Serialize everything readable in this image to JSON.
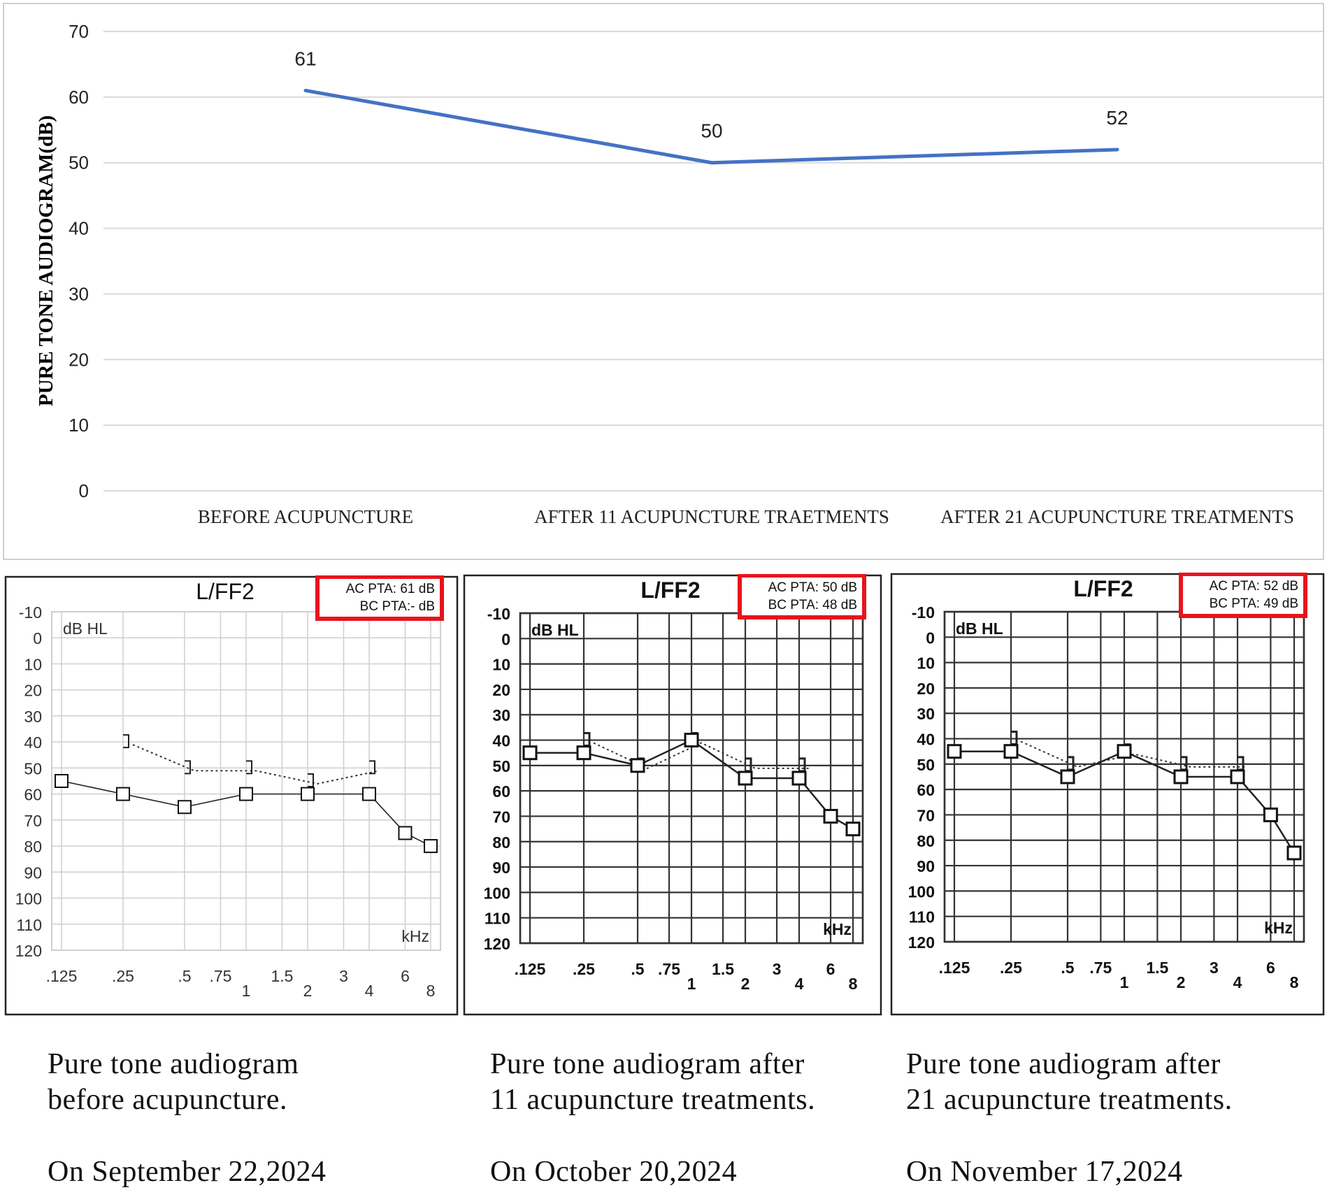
{
  "chart_data": [
    {
      "type": "line",
      "xlabel": "",
      "ylabel": "PURE TONE AUDIOGRAM(dB)",
      "ylim": [
        0,
        70
      ],
      "yticks": [
        0,
        10,
        20,
        30,
        40,
        50,
        60,
        70
      ],
      "grid": true,
      "categories": [
        "BEFORE ACUPUNCTURE",
        "AFTER 11 ACUPUNCTURE TRAETMENTS",
        "AFTER 21 ACUPUNCTURE TREATMENTS"
      ],
      "series": [
        {
          "values": [
            61,
            50,
            52
          ],
          "color": "#4472c4"
        }
      ],
      "data_labels": [
        "61",
        "50",
        "52"
      ]
    },
    {
      "type": "line",
      "title": "L/FF2",
      "unit_label": "dB HL",
      "x_unit": "kHz",
      "pta": [
        "AC PTA: 61 dB",
        "BC PTA:- dB"
      ],
      "yticks": [
        "-10",
        "0",
        "10",
        "20",
        "30",
        "40",
        "50",
        "60",
        "70",
        "80",
        "90",
        "100",
        "110",
        "120"
      ],
      "xticks": [
        ".125",
        ".25",
        ".5",
        ".75",
        "1",
        "1.5",
        "2",
        "3",
        "4",
        "6",
        "8"
      ],
      "ac": [
        [
          0.125,
          55
        ],
        [
          0.25,
          60
        ],
        [
          0.5,
          65
        ],
        [
          1,
          60
        ],
        [
          2,
          60
        ],
        [
          4,
          60
        ],
        [
          6,
          75
        ],
        [
          8,
          80
        ]
      ],
      "bc": [
        [
          0.25,
          40
        ],
        [
          0.5,
          50
        ],
        [
          1,
          50
        ],
        [
          2,
          55
        ],
        [
          4,
          50
        ]
      ]
    },
    {
      "type": "line",
      "title": "L/FF2",
      "unit_label": "dB HL",
      "x_unit": "kHz",
      "pta": [
        "AC PTA: 50 dB",
        "BC PTA: 48 dB"
      ],
      "yticks": [
        "-10",
        "0",
        "10",
        "20",
        "30",
        "40",
        "50",
        "60",
        "70",
        "80",
        "90",
        "100",
        "110",
        "120"
      ],
      "xticks": [
        ".125",
        ".25",
        ".5",
        ".75",
        "1",
        "1.5",
        "2",
        "3",
        "4",
        "6",
        "8"
      ],
      "ac": [
        [
          0.125,
          45
        ],
        [
          0.25,
          45
        ],
        [
          0.5,
          50
        ],
        [
          1,
          40
        ],
        [
          2,
          55
        ],
        [
          4,
          55
        ],
        [
          6,
          70
        ],
        [
          8,
          75
        ]
      ],
      "bc": [
        [
          0.25,
          40
        ],
        [
          0.5,
          50
        ],
        [
          1,
          40
        ],
        [
          2,
          50
        ],
        [
          4,
          50
        ]
      ]
    },
    {
      "type": "line",
      "title": "L/FF2",
      "unit_label": "dB HL",
      "x_unit": "kHz",
      "pta": [
        "AC PTA: 52 dB",
        "BC PTA: 49 dB"
      ],
      "yticks": [
        "-10",
        "0",
        "10",
        "20",
        "30",
        "40",
        "50",
        "60",
        "70",
        "80",
        "90",
        "100",
        "110",
        "120"
      ],
      "xticks": [
        ".125",
        ".25",
        ".5",
        ".75",
        "1",
        "1.5",
        "2",
        "3",
        "4",
        "6",
        "8"
      ],
      "ac": [
        [
          0.125,
          45
        ],
        [
          0.25,
          45
        ],
        [
          0.5,
          55
        ],
        [
          1,
          45
        ],
        [
          2,
          55
        ],
        [
          4,
          55
        ],
        [
          6,
          70
        ],
        [
          8,
          85
        ]
      ],
      "bc": [
        [
          0.25,
          40
        ],
        [
          0.5,
          50
        ],
        [
          1,
          45
        ],
        [
          2,
          50
        ],
        [
          4,
          50
        ]
      ]
    }
  ],
  "captions": [
    {
      "line1": "Pure tone audiogram",
      "line2": "before acupuncture.",
      "date": "On September 22,2024"
    },
    {
      "line1": "Pure tone audiogram after",
      "line2": "11 acupuncture treatments.",
      "date": "On October 20,2024"
    },
    {
      "line1": "Pure tone audiogram after",
      "line2": "21 acupuncture treatments.",
      "date": "On November 17,2024"
    }
  ],
  "colors": {
    "line": "#4472c4",
    "highlight": "#e8141c",
    "grid_light": "#d9d9d9"
  }
}
